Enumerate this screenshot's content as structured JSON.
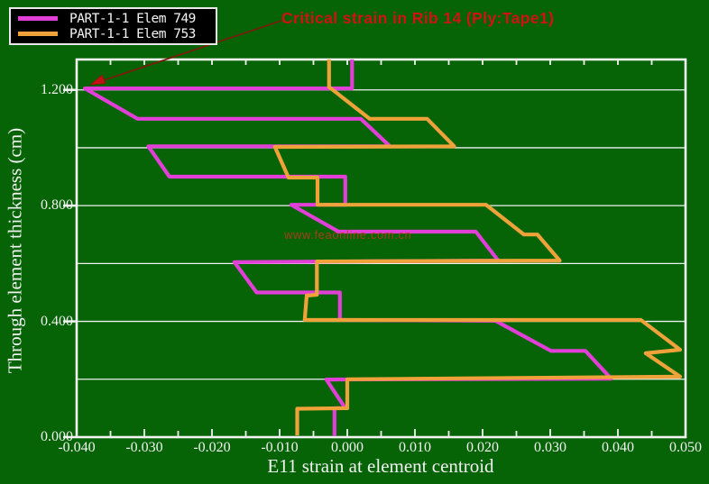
{
  "title": {
    "text": "Critical strain in Rib 14 (Ply:Tape1)",
    "color": "#d11212"
  },
  "watermark": {
    "text": "www.feaonline.com.cn",
    "color": "#bf3a1e"
  },
  "legend": {
    "items": [
      {
        "label": "PART-1-1 Elem 749",
        "color": "#e23fd9"
      },
      {
        "label": "PART-1-1 Elem 753",
        "color": "#efa23a"
      }
    ]
  },
  "colors": {
    "background": "#066306",
    "axis": "#f2f2f2",
    "gridline": "#eef2ee",
    "series_749": "#e23fd9",
    "series_753": "#efa23a",
    "arrow": "#7e1a0c"
  },
  "chart_data": {
    "type": "line",
    "title": "Critical strain in Rib 14 (Ply:Tape1)",
    "xlabel": "E11 strain at element centroid",
    "ylabel": "Through element thickness (cm)",
    "xlim": [
      -0.04,
      0.05
    ],
    "ylim": [
      0,
      1.305
    ],
    "grid": "horizontal-only",
    "gridlines_y": [
      0.2,
      0.4,
      0.6,
      0.8,
      1.0,
      1.2
    ],
    "x_ticks": {
      "values": [
        -0.04,
        -0.03,
        -0.02,
        -0.01,
        0.0,
        0.01,
        0.02,
        0.03,
        0.04,
        0.05
      ],
      "labels": [
        "-0.040",
        "-0.030",
        "-0.020",
        "-0.010",
        "0.000",
        "0.010",
        "0.020",
        "0.030",
        "0.040",
        "0.050"
      ],
      "minor_step": 0.005
    },
    "y_ticks": {
      "values": [
        0.0,
        0.4,
        0.8,
        1.2
      ],
      "labels": [
        "0.000",
        "0.400",
        "0.800",
        "1.200"
      ]
    },
    "legend_position": "top-left",
    "annotation": {
      "points_to_strain": -0.0388,
      "points_to_thickness": 1.205
    },
    "series": [
      {
        "name": "PART-1-1 Elem 749",
        "color": "#e23fd9",
        "points": [
          [
            0.0007,
            1.305
          ],
          [
            0.0007,
            1.205
          ],
          [
            -0.0388,
            1.205
          ],
          [
            -0.031,
            1.1
          ],
          [
            0.002,
            1.1
          ],
          [
            0.0063,
            1.005
          ],
          [
            -0.0294,
            1.005
          ],
          [
            -0.0263,
            0.9
          ],
          [
            -0.0003,
            0.9
          ],
          [
            -0.0003,
            0.803
          ],
          [
            -0.0083,
            0.803
          ],
          [
            -0.0013,
            0.71
          ],
          [
            0.019,
            0.71
          ],
          [
            0.0223,
            0.61
          ],
          [
            -0.0167,
            0.605
          ],
          [
            -0.0134,
            0.5
          ],
          [
            -0.0011,
            0.5
          ],
          [
            -0.0011,
            0.405
          ],
          [
            0.0219,
            0.402
          ],
          [
            0.0301,
            0.298
          ],
          [
            0.0352,
            0.298
          ],
          [
            0.039,
            0.202
          ],
          [
            -0.0031,
            0.199
          ],
          [
            -0.0003,
            0.1
          ],
          [
            -0.0019,
            0.1
          ],
          [
            -0.0019,
            0.004
          ]
        ]
      },
      {
        "name": "PART-1-1 Elem 753",
        "color": "#efa23a",
        "points": [
          [
            -0.0027,
            1.305
          ],
          [
            -0.0027,
            1.21
          ],
          [
            0.0033,
            1.1
          ],
          [
            0.0118,
            1.1
          ],
          [
            0.0158,
            1.005
          ],
          [
            -0.0107,
            1.003
          ],
          [
            -0.0087,
            0.897
          ],
          [
            -0.0044,
            0.897
          ],
          [
            -0.0044,
            0.803
          ],
          [
            0.0205,
            0.803
          ],
          [
            0.0261,
            0.7
          ],
          [
            0.0281,
            0.7
          ],
          [
            0.0314,
            0.61
          ],
          [
            -0.0045,
            0.607
          ],
          [
            -0.0045,
            0.492
          ],
          [
            -0.006,
            0.489
          ],
          [
            -0.0063,
            0.405
          ],
          [
            0.0434,
            0.405
          ],
          [
            0.0492,
            0.302
          ],
          [
            0.0441,
            0.29
          ],
          [
            0.0492,
            0.209
          ],
          [
            0.0,
            0.2
          ],
          [
            0.0,
            0.1
          ],
          [
            -0.0074,
            0.098
          ],
          [
            -0.0074,
            0.006
          ]
        ]
      }
    ]
  }
}
